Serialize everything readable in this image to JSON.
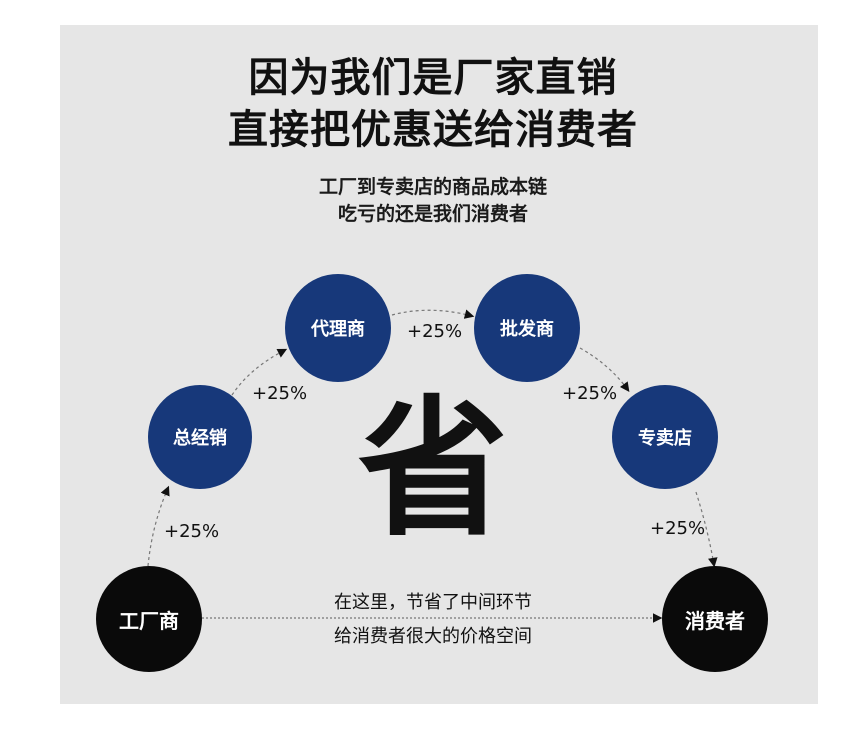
{
  "headline": {
    "line1": "因为我们是厂家直销",
    "line2": "直接把优惠送给消费者"
  },
  "subtitle": {
    "line1": "工厂到专卖店的商品成本链",
    "line2": "吃亏的还是我们消费者"
  },
  "nodes": [
    {
      "label": "工厂商",
      "color": "#0a0a0a"
    },
    {
      "label": "总经销",
      "color": "#17387a"
    },
    {
      "label": "代理商",
      "color": "#17387a"
    },
    {
      "label": "批发商",
      "color": "#17387a"
    },
    {
      "label": "专卖店",
      "color": "#17387a"
    },
    {
      "label": "消费者",
      "color": "#0a0a0a"
    }
  ],
  "markups": [
    "+25%",
    "+25%",
    "+25%",
    "+25%",
    "+25%"
  ],
  "center_char": "省",
  "savings_note": {
    "line1": "在这里，节省了中间环节",
    "line2": "给消费者很大的价格空间"
  }
}
